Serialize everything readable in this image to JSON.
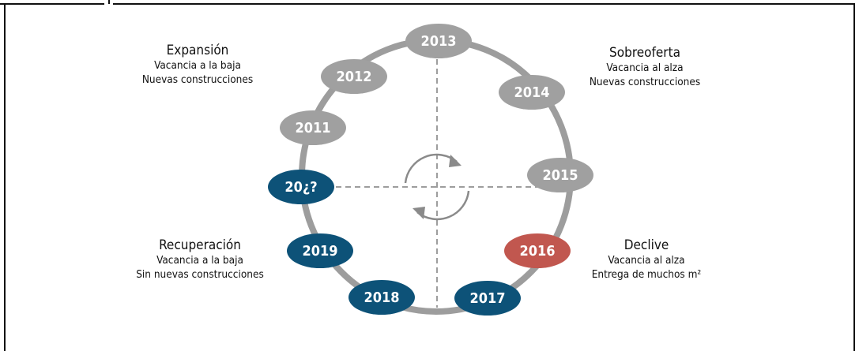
{
  "quadrants": [
    {
      "title": "Expansión",
      "lines": [
        "Vacancia a la baja",
        "Nuevas construcciones"
      ]
    },
    {
      "title": "Sobreoferta",
      "lines": [
        "Vacancia al alza",
        "Nuevas construcciones"
      ]
    },
    {
      "title": "Recuperación",
      "lines": [
        "Vacancia a la baja",
        "Sin nuevas construcciones"
      ]
    },
    {
      "title": "Declive",
      "lines": [
        "Vacancia al alza",
        "Entrega de muchos m²"
      ]
    }
  ],
  "nodes": [
    {
      "label": "2013",
      "color": "#a0a0a0"
    },
    {
      "label": "2012",
      "color": "#a0a0a0"
    },
    {
      "label": "2014",
      "color": "#a0a0a0"
    },
    {
      "label": "2011",
      "color": "#a0a0a0"
    },
    {
      "label": "2015",
      "color": "#a0a0a0"
    },
    {
      "label": "20¿?",
      "color": "#0d5278"
    },
    {
      "label": "2019",
      "color": "#0d5278"
    },
    {
      "label": "2016",
      "color": "#c1574f"
    },
    {
      "label": "2018",
      "color": "#0d5278"
    },
    {
      "label": "2017",
      "color": "#0d5278"
    }
  ]
}
